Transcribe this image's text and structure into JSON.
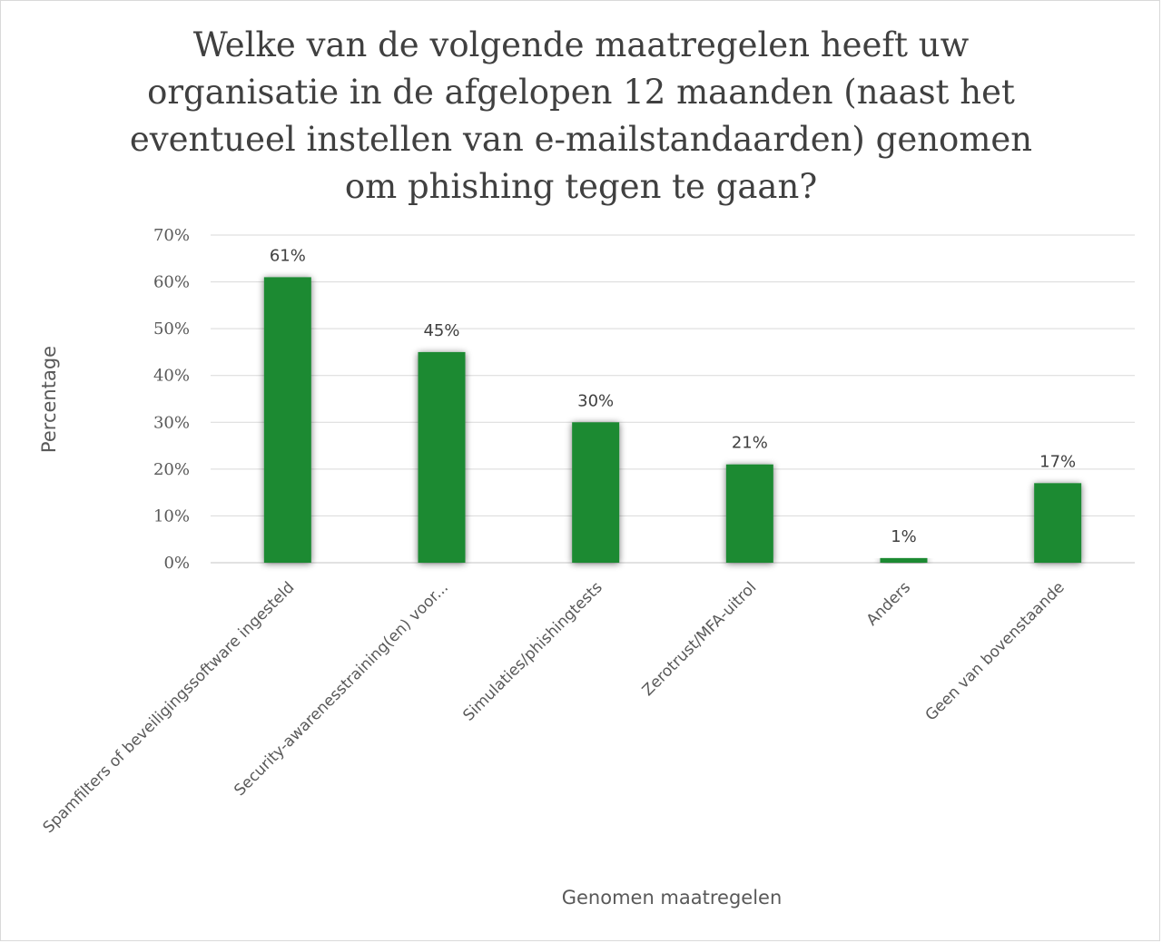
{
  "chart_data": {
    "type": "bar",
    "title_lines": [
      "Welke van de volgende maatregelen heeft uw",
      "organisatie in de afgelopen 12 maanden (naast het",
      "eventueel instellen van e-mailstandaarden) genomen",
      "om phishing tegen te gaan?"
    ],
    "xlabel": "Genomen maatregelen",
    "ylabel": "Percentage",
    "categories": [
      "Spamfilters of beveiligingssoftware ingesteld",
      "Security-awarenesstraining(en) voor...",
      "Simulaties/phishingtests",
      "Zerotrust/MFA-uitrol",
      "Anders",
      "Geen van bovenstaande"
    ],
    "values": [
      61,
      45,
      30,
      21,
      1,
      17
    ],
    "data_labels": [
      "61%",
      "45%",
      "30%",
      "21%",
      "1%",
      "17%"
    ],
    "ylim": [
      0,
      70
    ],
    "yticks": [
      "0%",
      "10%",
      "20%",
      "30%",
      "40%",
      "50%",
      "60%",
      "70%"
    ],
    "grid": true,
    "legend": "none",
    "bar_color": "#1a8a33",
    "grid_color": "#d9d9d9"
  }
}
